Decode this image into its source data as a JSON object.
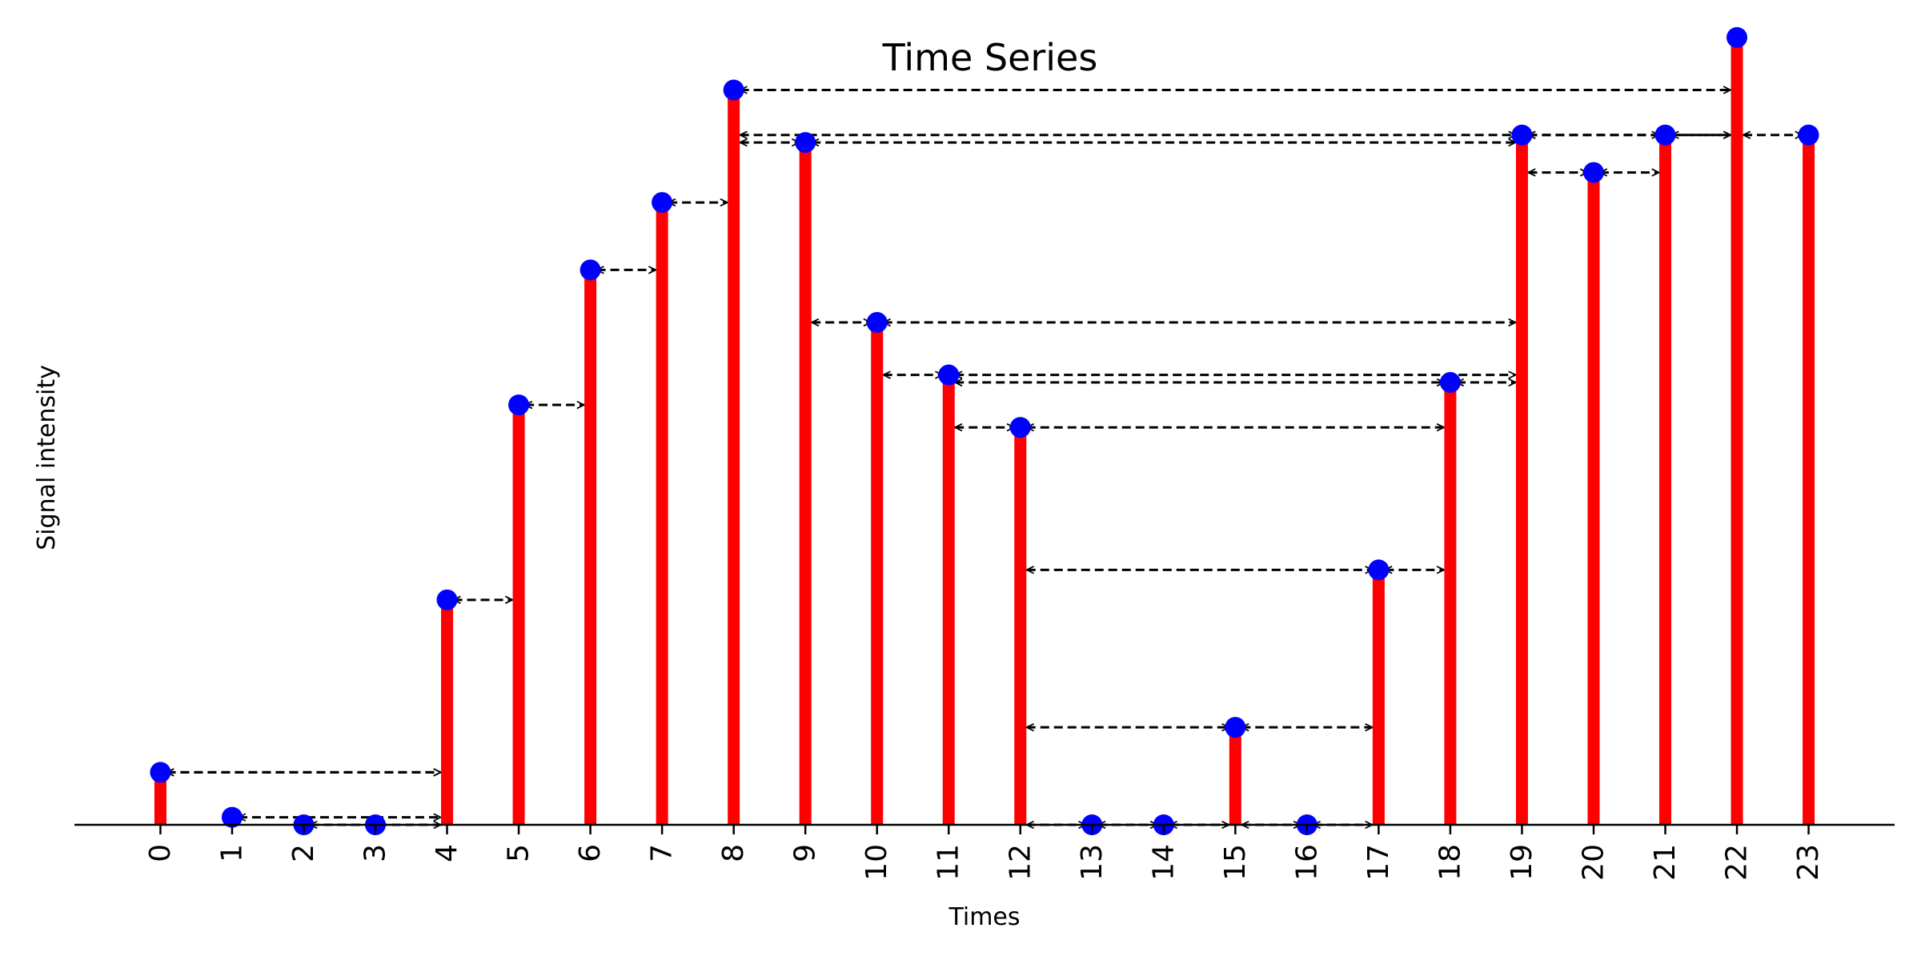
{
  "chart_data": {
    "type": "bar",
    "title": "Time Series",
    "xlabel": "Times",
    "ylabel": "Signal intensity",
    "x": [
      0,
      1,
      2,
      3,
      4,
      5,
      6,
      7,
      8,
      9,
      10,
      11,
      12,
      13,
      14,
      15,
      16,
      17,
      18,
      19,
      20,
      21,
      22,
      23
    ],
    "values": [
      0.7,
      0.1,
      0.0,
      0.0,
      3.0,
      5.6,
      7.4,
      8.3,
      9.8,
      9.1,
      6.7,
      6.0,
      5.3,
      0.0,
      0.0,
      1.3,
      0.0,
      3.4,
      5.9,
      9.2,
      8.7,
      9.2,
      10.5,
      9.2
    ],
    "ylim": [
      0,
      11.0
    ],
    "xlim": [
      -1.2,
      24.2
    ],
    "y_ticks_visible": false,
    "grid": false,
    "legend": "none",
    "bar_color": "#ff0000",
    "marker_color": "#0000ff",
    "arrow_color": "#000000",
    "links": [
      [
        0,
        4
      ],
      [
        0,
        4
      ],
      [
        1,
        4
      ],
      [
        2,
        4
      ],
      [
        4,
        5
      ],
      [
        5,
        6
      ],
      [
        6,
        7
      ],
      [
        7,
        8
      ],
      [
        8,
        22
      ],
      [
        8,
        19
      ],
      [
        19,
        22
      ],
      [
        9,
        19
      ],
      [
        8,
        9
      ],
      [
        19,
        21
      ],
      [
        21,
        22
      ],
      [
        22,
        23
      ],
      [
        19,
        20
      ],
      [
        20,
        21
      ],
      [
        9,
        10
      ],
      [
        10,
        19
      ],
      [
        10,
        11
      ],
      [
        11,
        19
      ],
      [
        11,
        18
      ],
      [
        18,
        19
      ],
      [
        11,
        12
      ],
      [
        12,
        18
      ],
      [
        12,
        17
      ],
      [
        17,
        18
      ],
      [
        12,
        15
      ],
      [
        15,
        17
      ],
      [
        12,
        13
      ],
      [
        13,
        14
      ],
      [
        14,
        15
      ],
      [
        15,
        16
      ],
      [
        16,
        17
      ]
    ]
  }
}
